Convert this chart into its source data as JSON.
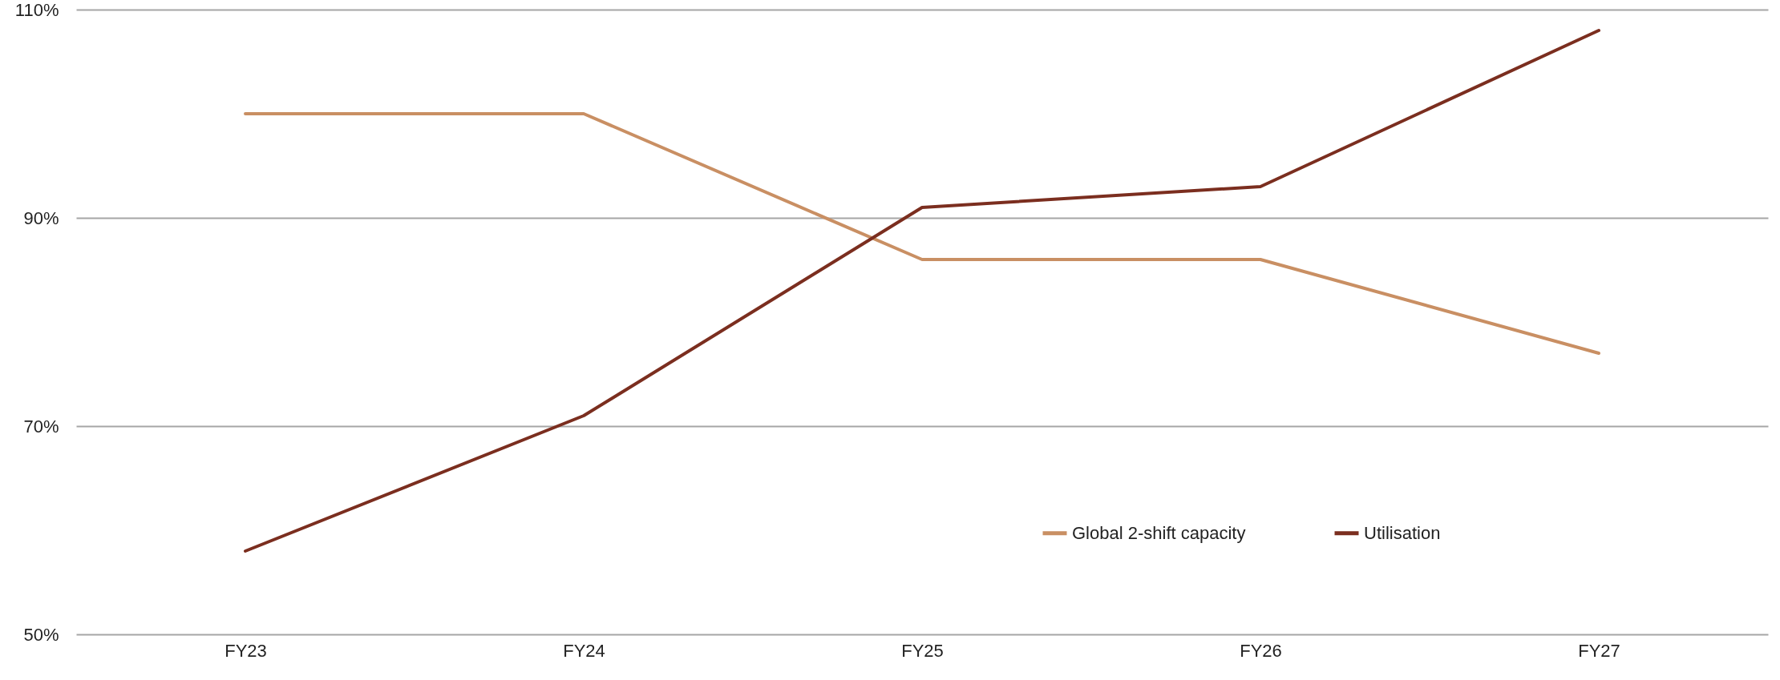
{
  "chart_data": {
    "type": "line",
    "categories": [
      "FY23",
      "FY24",
      "FY25",
      "FY26",
      "FY27"
    ],
    "series": [
      {
        "name": "Global 2-shift capacity",
        "color": "#c98f63",
        "values": [
          100,
          100,
          86,
          86,
          77
        ]
      },
      {
        "name": "Utilisation",
        "color": "#7b2e1f",
        "values": [
          58,
          71,
          91,
          93,
          108
        ]
      }
    ],
    "ylim": [
      50,
      110
    ],
    "yticks": [
      {
        "value": 50,
        "label": "50%"
      },
      {
        "value": 70,
        "label": "70%"
      },
      {
        "value": 90,
        "label": "90%"
      },
      {
        "value": 110,
        "label": "110%"
      }
    ],
    "grid": "y",
    "legend": "bottom right",
    "marker": "none",
    "line_style": "solid"
  }
}
